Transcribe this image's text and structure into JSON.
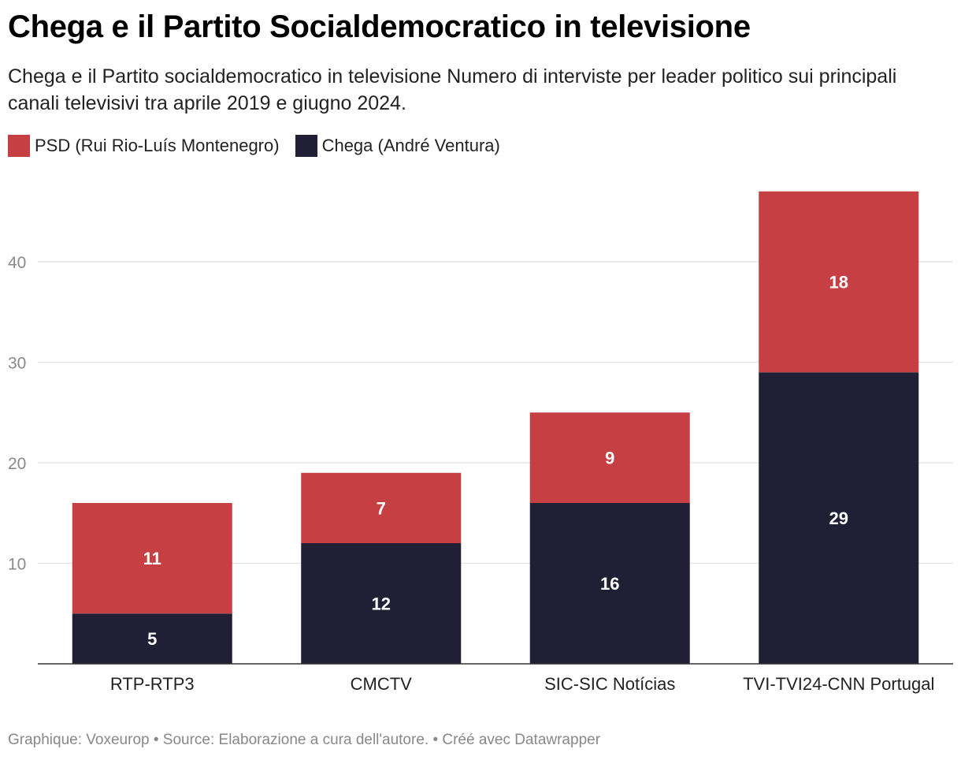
{
  "header": {
    "title": "Chega e il Partito Socialdemocratico in televisione",
    "subtitle": "Chega e il Partito socialdemocratico in televisione Numero di interviste per leader politico sui principali canali televisivi tra aprile 2019 e giugno 2024."
  },
  "legend": [
    {
      "label": "PSD (Rui Rio-Luís Montenegro)",
      "color": "#c64043"
    },
    {
      "label": "Chega (André Ventura)",
      "color": "#211f35"
    }
  ],
  "footer": {
    "text": "Graphique: Voxeurop • Source: Elaborazione a cura dell'autore. • Créé avec Datawrapper"
  },
  "chart_data": {
    "type": "bar",
    "stacked": true,
    "categories": [
      "RTP-RTP3",
      "CMCTV",
      "SIC-SIC Notícias",
      "TVI-TVI24-CNN Portugal"
    ],
    "series": [
      {
        "name": "Chega (André Ventura)",
        "values": [
          5,
          12,
          16,
          29
        ],
        "color": "#211f35"
      },
      {
        "name": "PSD (Rui Rio-Luís Montenegro)",
        "values": [
          11,
          7,
          9,
          18
        ],
        "color": "#c64043"
      }
    ],
    "yticks": [
      10,
      20,
      30,
      40
    ],
    "ylim": [
      0,
      47
    ],
    "grid": true,
    "legend_position": "top-left"
  }
}
